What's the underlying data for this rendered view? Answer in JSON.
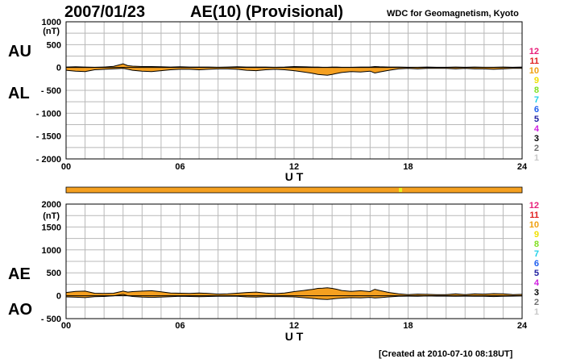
{
  "header": {
    "date": "2007/01/23",
    "title": "AE(10) (Provisional)",
    "source": "WDC for Geomagnetism, Kyoto"
  },
  "footer": {
    "created": "[Created at 2010-07-10 08:18UT]"
  },
  "colors": {
    "fill": "#f5a020",
    "grid": "#b8b8b8",
    "status_bar": "#f5a020",
    "status_marker": "#e8f020"
  },
  "station_legend": [
    {
      "label": "12",
      "color": "#e8207a"
    },
    {
      "label": "11",
      "color": "#e02020"
    },
    {
      "label": "10",
      "color": "#f0a010"
    },
    {
      "label": "9",
      "color": "#f0e000"
    },
    {
      "label": "8",
      "color": "#80e020"
    },
    {
      "label": "7",
      "color": "#20d0e8"
    },
    {
      "label": "6",
      "color": "#2060f0"
    },
    {
      "label": "5",
      "color": "#2020a0"
    },
    {
      "label": "4",
      "color": "#d020e0"
    },
    {
      "label": "3",
      "color": "#000000"
    },
    {
      "label": "2",
      "color": "#707070"
    },
    {
      "label": "1",
      "color": "#c8c8c8"
    }
  ],
  "status_bar": {
    "marker_hour": 17.6
  },
  "chart_data": [
    {
      "id": "au-al",
      "type": "area",
      "upper_label": "AU",
      "lower_label": "AL",
      "unit": "(nT)",
      "xlabel": "U T",
      "xlim": [
        0,
        24
      ],
      "xticks": [
        0,
        6,
        12,
        18,
        24
      ],
      "xtick_labels": [
        "00",
        "06",
        "12",
        "18",
        "24"
      ],
      "ylim": [
        -2000,
        1000
      ],
      "yticks": [
        1000,
        500,
        0,
        -500,
        -1000,
        -1500,
        -2000
      ],
      "ytick_labels": [
        "1000",
        "500",
        "0",
        "- 500",
        "- 1000",
        "- 1500",
        "- 2000"
      ],
      "grid": true,
      "x": [
        0,
        0.5,
        1,
        1.5,
        2,
        2.5,
        3,
        3.25,
        3.5,
        4,
        4.5,
        5,
        5.5,
        6,
        6.5,
        7,
        7.5,
        8,
        8.5,
        9,
        9.5,
        10,
        10.5,
        11,
        11.5,
        12,
        12.5,
        13,
        13.25,
        13.5,
        13.75,
        14,
        14.25,
        14.5,
        15,
        15.5,
        16,
        16.25,
        16.5,
        17,
        17.5,
        18,
        18.5,
        19,
        19.5,
        20,
        20.5,
        21,
        21.5,
        22,
        22.5,
        23,
        23.5,
        24
      ],
      "series": [
        {
          "name": "AU",
          "values": [
            10,
            15,
            10,
            5,
            10,
            25,
            80,
            40,
            30,
            20,
            20,
            15,
            10,
            15,
            10,
            10,
            10,
            5,
            10,
            15,
            10,
            10,
            10,
            5,
            10,
            20,
            15,
            10,
            10,
            5,
            5,
            10,
            10,
            5,
            5,
            10,
            10,
            20,
            15,
            10,
            10,
            5,
            5,
            10,
            5,
            5,
            10,
            5,
            10,
            5,
            5,
            10,
            5,
            10
          ]
        },
        {
          "name": "AL",
          "values": [
            -60,
            -80,
            -90,
            -50,
            -40,
            -30,
            -20,
            -40,
            -60,
            -80,
            -90,
            -70,
            -50,
            -40,
            -40,
            -50,
            -40,
            -30,
            -30,
            -40,
            -60,
            -70,
            -50,
            -40,
            -50,
            -70,
            -100,
            -130,
            -150,
            -160,
            -170,
            -150,
            -130,
            -110,
            -90,
            -100,
            -80,
            -120,
            -100,
            -60,
            -30,
            -20,
            -30,
            -20,
            -20,
            -20,
            -30,
            -20,
            -30,
            -30,
            -40,
            -30,
            -20,
            -20
          ]
        }
      ]
    },
    {
      "id": "ae-ao",
      "type": "area",
      "upper_label": "AE",
      "lower_label": "AO",
      "unit": "(nT)",
      "xlabel": "U T",
      "xlim": [
        0,
        24
      ],
      "xticks": [
        0,
        6,
        12,
        18,
        24
      ],
      "xtick_labels": [
        "00",
        "06",
        "12",
        "18",
        "24"
      ],
      "ylim": [
        -500,
        2000
      ],
      "yticks": [
        2000,
        1500,
        1000,
        500,
        0,
        -500
      ],
      "ytick_labels": [
        "2000",
        "1500",
        "1000",
        "500",
        "0",
        "- 500"
      ],
      "grid": true,
      "x": [
        0,
        0.5,
        1,
        1.5,
        2,
        2.5,
        3,
        3.25,
        3.5,
        4,
        4.5,
        5,
        5.5,
        6,
        6.5,
        7,
        7.5,
        8,
        8.5,
        9,
        9.5,
        10,
        10.5,
        11,
        11.5,
        12,
        12.5,
        13,
        13.25,
        13.5,
        13.75,
        14,
        14.25,
        14.5,
        15,
        15.5,
        16,
        16.25,
        16.5,
        17,
        17.5,
        18,
        18.5,
        19,
        19.5,
        20,
        20.5,
        21,
        21.5,
        22,
        22.5,
        23,
        23.5,
        24
      ],
      "series": [
        {
          "name": "AE",
          "values": [
            70,
            95,
            100,
            55,
            50,
            55,
            100,
            80,
            90,
            100,
            110,
            85,
            60,
            55,
            50,
            60,
            50,
            35,
            40,
            55,
            70,
            80,
            60,
            45,
            60,
            90,
            115,
            140,
            160,
            165,
            175,
            160,
            140,
            115,
            95,
            110,
            90,
            140,
            115,
            70,
            40,
            25,
            35,
            30,
            25,
            25,
            40,
            25,
            40,
            35,
            45,
            40,
            25,
            30
          ]
        },
        {
          "name": "AO",
          "values": [
            -25,
            -32,
            -40,
            -22,
            -15,
            -3,
            30,
            0,
            -15,
            -30,
            -35,
            -28,
            -20,
            -13,
            -15,
            -20,
            -15,
            -13,
            -10,
            -13,
            -25,
            -30,
            -20,
            -18,
            -20,
            -25,
            -43,
            -60,
            -70,
            -78,
            -83,
            -70,
            -60,
            -53,
            -43,
            -45,
            -35,
            -50,
            -43,
            -25,
            -10,
            -8,
            -13,
            -5,
            -8,
            -8,
            -10,
            -8,
            -10,
            -13,
            -18,
            -10,
            -8,
            -5
          ]
        }
      ]
    }
  ]
}
